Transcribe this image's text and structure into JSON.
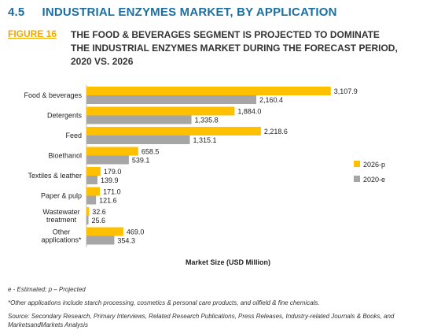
{
  "section": {
    "number": "4.5",
    "title": "INDUSTRIAL ENZYMES MARKET, BY APPLICATION"
  },
  "figure": {
    "label": "FIGURE 16",
    "title": "THE FOOD & BEVERAGES SEGMENT IS PROJECTED TO DOMINATE THE INDUSTRIAL ENZYMES MARKET DURING THE FORECAST PERIOD, 2020 VS. 2026"
  },
  "colors": {
    "series_2026": "#ffc000",
    "series_2020": "#a6a6a6"
  },
  "chart_data": {
    "type": "bar",
    "orientation": "horizontal",
    "categories": [
      "Food & beverages",
      "Detergents",
      "Feed",
      "Bioethanol",
      "Textiles & leather",
      "Paper & pulp",
      "Wastewater treatment",
      "Other applications*"
    ],
    "series": [
      {
        "name": "2026-p",
        "values": [
          3107.9,
          1884.0,
          2218.6,
          658.5,
          179.0,
          171.0,
          32.6,
          469.0
        ]
      },
      {
        "name": "2020-e",
        "values": [
          2160.4,
          1335.8,
          1315.1,
          539.1,
          139.9,
          121.6,
          25.6,
          354.3
        ]
      }
    ],
    "value_labels": [
      [
        "3,107.9",
        "1,884.0",
        "2,218.6",
        "658.5",
        "179.0",
        "171.0",
        "32.6",
        "469.0"
      ],
      [
        "2,160.4",
        "1,335.8",
        "1,315.1",
        "539.1",
        "139.9",
        "121.6",
        "25.6",
        "354.3"
      ]
    ],
    "xlabel": "Market Size (USD Million)",
    "xlim": [
      0,
      3300
    ],
    "grid": false,
    "legend_position": "right"
  },
  "notes": {
    "abbrev": "e - Estimated; p – Projected",
    "footnote": "*Other applications include starch processing, cosmetics & personal care products, and oilfield & fine chemicals.",
    "source": "Source: Secondary Research, Primary Interviews, Related Research Publications, Press Releases, Industry-related Journals & Books, and MarketsandMarkets Analysis"
  }
}
